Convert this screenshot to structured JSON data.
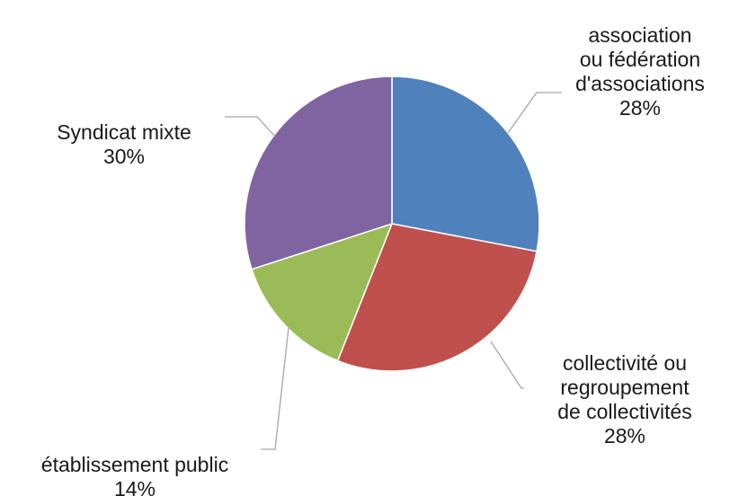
{
  "chart_data": {
    "type": "pie",
    "title": "",
    "slices": [
      {
        "lines": [
          "association",
          "ou fédération",
          "d'associations"
        ],
        "percent_label": "28%",
        "value": 28,
        "color": "#4f81bd"
      },
      {
        "lines": [
          "collectivité ou",
          "regroupement",
          "de collectivités"
        ],
        "percent_label": "28%",
        "value": 28,
        "color": "#c0504d"
      },
      {
        "lines": [
          "établissement public"
        ],
        "percent_label": "14%",
        "value": 14,
        "color": "#9bbb59"
      },
      {
        "lines": [
          "Syndicat mixte"
        ],
        "percent_label": "30%",
        "value": 30,
        "color": "#8064a2"
      }
    ],
    "start_angle_deg": 0,
    "direction": "clockwise",
    "legend": "none",
    "data_labels": "outside-with-leader-lines"
  }
}
